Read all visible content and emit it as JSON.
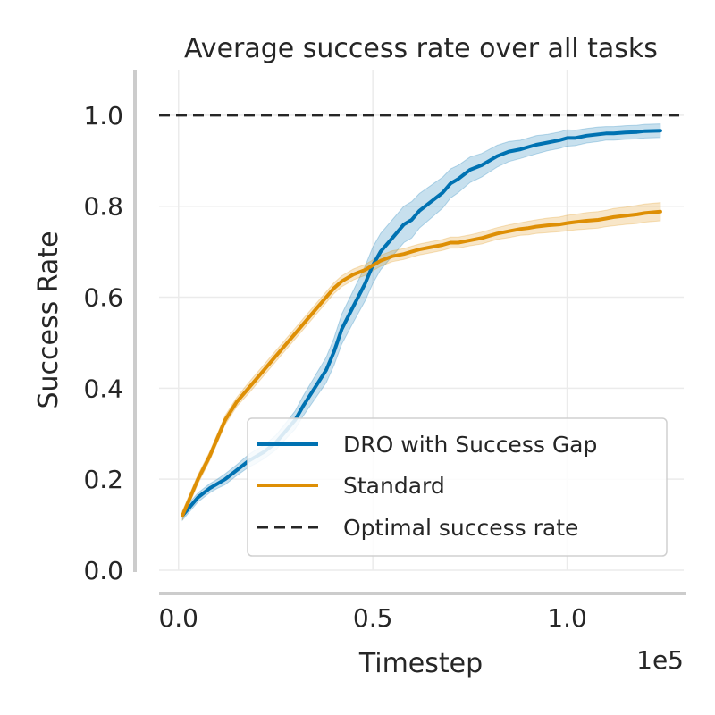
{
  "chart_data": {
    "type": "line",
    "title": "Average success rate over all tasks",
    "xlabel": "Timestep",
    "ylabel": "Success Rate",
    "x_offset_label": "1e5",
    "xlim": [
      -0.05,
      1.3
    ],
    "ylim": [
      0.0,
      1.1
    ],
    "x_ticks": [
      0.0,
      0.5,
      1.0
    ],
    "x_tick_labels": [
      "0.0",
      "0.5",
      "1.0"
    ],
    "y_ticks": [
      0.0,
      0.2,
      0.4,
      0.6,
      0.8,
      1.0
    ],
    "y_tick_labels": [
      "0.0",
      "0.2",
      "0.4",
      "0.6",
      "0.8",
      "1.0"
    ],
    "grid": true,
    "legend_position": "lower-right",
    "series": [
      {
        "name": "DRO with Success Gap",
        "color": "#0072b2",
        "x": [
          0.01,
          0.03,
          0.05,
          0.08,
          0.1,
          0.12,
          0.15,
          0.18,
          0.2,
          0.22,
          0.25,
          0.28,
          0.3,
          0.32,
          0.35,
          0.38,
          0.4,
          0.42,
          0.45,
          0.48,
          0.5,
          0.52,
          0.55,
          0.58,
          0.6,
          0.62,
          0.65,
          0.68,
          0.7,
          0.72,
          0.75,
          0.78,
          0.8,
          0.82,
          0.85,
          0.88,
          0.9,
          0.92,
          0.95,
          0.98,
          1.0,
          1.02,
          1.05,
          1.08,
          1.1,
          1.12,
          1.15,
          1.18,
          1.2,
          1.24
        ],
        "y": [
          0.12,
          0.14,
          0.16,
          0.18,
          0.19,
          0.2,
          0.22,
          0.24,
          0.25,
          0.26,
          0.28,
          0.31,
          0.33,
          0.36,
          0.4,
          0.44,
          0.48,
          0.53,
          0.58,
          0.63,
          0.67,
          0.7,
          0.73,
          0.76,
          0.77,
          0.79,
          0.81,
          0.83,
          0.85,
          0.86,
          0.88,
          0.89,
          0.9,
          0.91,
          0.92,
          0.925,
          0.93,
          0.935,
          0.94,
          0.945,
          0.95,
          0.95,
          0.955,
          0.958,
          0.96,
          0.96,
          0.962,
          0.963,
          0.965,
          0.966
        ],
        "band": [
          0.01,
          0.01,
          0.01,
          0.01,
          0.01,
          0.012,
          0.012,
          0.014,
          0.015,
          0.015,
          0.016,
          0.018,
          0.02,
          0.022,
          0.025,
          0.028,
          0.03,
          0.033,
          0.035,
          0.038,
          0.04,
          0.04,
          0.04,
          0.04,
          0.04,
          0.038,
          0.036,
          0.034,
          0.032,
          0.03,
          0.028,
          0.026,
          0.025,
          0.024,
          0.022,
          0.02,
          0.02,
          0.02,
          0.018,
          0.018,
          0.018,
          0.017,
          0.016,
          0.016,
          0.015,
          0.015,
          0.015,
          0.015,
          0.015,
          0.015
        ]
      },
      {
        "name": "Standard",
        "color": "#de8f05",
        "x": [
          0.01,
          0.03,
          0.05,
          0.08,
          0.1,
          0.12,
          0.15,
          0.18,
          0.2,
          0.22,
          0.25,
          0.28,
          0.3,
          0.32,
          0.35,
          0.38,
          0.4,
          0.42,
          0.45,
          0.48,
          0.5,
          0.52,
          0.55,
          0.58,
          0.6,
          0.62,
          0.65,
          0.68,
          0.7,
          0.72,
          0.75,
          0.78,
          0.8,
          0.82,
          0.85,
          0.88,
          0.9,
          0.92,
          0.95,
          0.98,
          1.0,
          1.02,
          1.05,
          1.08,
          1.1,
          1.12,
          1.15,
          1.18,
          1.2,
          1.24
        ],
        "y": [
          0.12,
          0.16,
          0.2,
          0.25,
          0.29,
          0.33,
          0.37,
          0.4,
          0.42,
          0.44,
          0.47,
          0.5,
          0.52,
          0.54,
          0.57,
          0.6,
          0.62,
          0.635,
          0.65,
          0.66,
          0.67,
          0.68,
          0.69,
          0.695,
          0.7,
          0.705,
          0.71,
          0.715,
          0.72,
          0.72,
          0.725,
          0.73,
          0.735,
          0.74,
          0.745,
          0.75,
          0.752,
          0.755,
          0.758,
          0.76,
          0.763,
          0.765,
          0.768,
          0.77,
          0.773,
          0.776,
          0.779,
          0.782,
          0.785,
          0.788
        ],
        "band": [
          0.01,
          0.01,
          0.01,
          0.01,
          0.01,
          0.01,
          0.01,
          0.012,
          0.012,
          0.012,
          0.012,
          0.012,
          0.012,
          0.012,
          0.012,
          0.012,
          0.012,
          0.012,
          0.012,
          0.012,
          0.012,
          0.012,
          0.012,
          0.012,
          0.012,
          0.012,
          0.012,
          0.012,
          0.012,
          0.012,
          0.012,
          0.013,
          0.013,
          0.013,
          0.014,
          0.014,
          0.015,
          0.015,
          0.016,
          0.016,
          0.017,
          0.017,
          0.018,
          0.018,
          0.018,
          0.019,
          0.019,
          0.02,
          0.02,
          0.02
        ]
      }
    ],
    "reference_line": {
      "name": "Optimal success rate",
      "y": 1.0,
      "color": "#262626"
    }
  }
}
